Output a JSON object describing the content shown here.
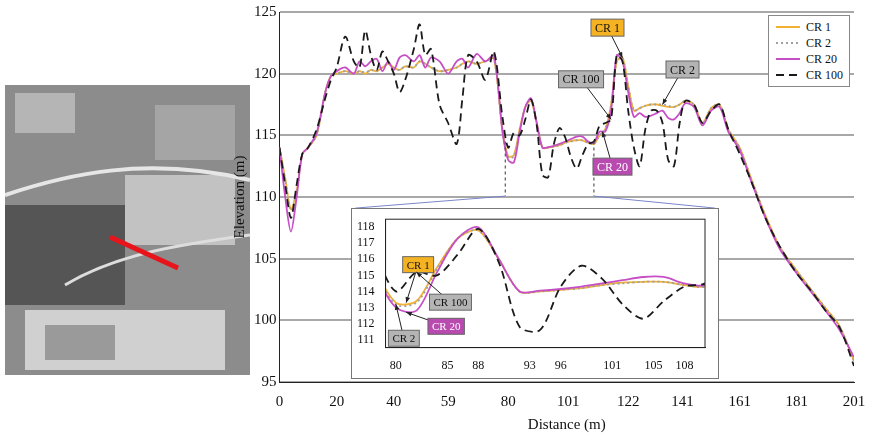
{
  "chart_data": {
    "type": "line",
    "x_label": "Distance (m)",
    "y_label": "Elevation (m)",
    "xlim": [
      0,
      201
    ],
    "xticks": [
      0,
      20,
      40,
      59,
      80,
      101,
      122,
      141,
      161,
      181,
      201
    ],
    "ylim": [
      95,
      125
    ],
    "yticks": [
      95,
      100,
      105,
      110,
      115,
      120,
      125
    ],
    "grid": true,
    "legend": "upper right",
    "x": [
      0,
      2,
      4,
      6,
      8,
      10,
      13,
      16,
      18,
      20,
      23,
      26,
      28,
      30,
      32,
      34,
      36,
      38,
      40,
      42,
      44,
      47,
      49,
      51,
      53,
      56,
      59,
      62,
      64,
      66,
      69,
      72,
      75,
      78,
      80,
      82,
      84,
      86,
      88,
      90,
      92,
      94,
      96,
      98,
      100,
      102,
      104,
      106,
      108,
      110,
      112,
      114,
      116,
      118,
      120,
      122,
      124,
      126,
      128,
      130,
      132,
      134,
      136,
      138,
      140,
      142,
      145,
      148,
      151,
      154,
      157,
      161,
      165,
      170,
      175,
      181,
      186,
      191,
      196,
      201
    ],
    "series": [
      {
        "name": "CR 1",
        "color": "#f2b134",
        "line_style": "solid",
        "values": [
          114,
          111.5,
          109,
          110.5,
          113.5,
          114,
          115,
          118.5,
          119.8,
          120,
          120.2,
          120,
          120.2,
          120,
          120.3,
          120.2,
          120.5,
          120.8,
          120.5,
          120.3,
          120.6,
          120.5,
          121,
          120.8,
          120.5,
          120.2,
          120.3,
          120.5,
          120.8,
          121,
          120.8,
          121,
          121.2,
          115.5,
          113.3,
          113.4,
          115.5,
          117.3,
          117.8,
          116.0,
          114.0,
          114.0,
          114.1,
          114.2,
          114.4,
          114.55,
          114.6,
          114.6,
          114.4,
          114.3,
          115.0,
          115.5,
          117.5,
          121.0,
          121.3,
          119.0,
          117.0,
          117.2,
          117.4,
          117.5,
          117.5,
          117.4,
          117.3,
          117.3,
          117.5,
          117.8,
          117.5,
          116.0,
          117.2,
          117.5,
          115.5,
          114.0,
          111.5,
          108.5,
          106.0,
          104.0,
          102.5,
          101.0,
          99.5,
          96.7
        ]
      },
      {
        "name": "CR 2",
        "color": "#a0a0a0",
        "line_style": "dotted",
        "values": [
          114,
          111.4,
          108.9,
          110.5,
          113.5,
          114,
          115,
          118.4,
          119.8,
          120,
          120.2,
          120,
          120.2,
          120.1,
          120.3,
          120.2,
          120.5,
          120.8,
          120.5,
          120.3,
          120.6,
          120.5,
          121,
          120.8,
          120.5,
          120.2,
          120.3,
          120.5,
          120.8,
          121,
          120.8,
          121,
          121.2,
          115.4,
          113.2,
          113.3,
          115.4,
          117.3,
          117.8,
          116.0,
          114.0,
          114.0,
          114.1,
          114.2,
          114.4,
          114.5,
          114.6,
          114.6,
          114.4,
          114.3,
          115.0,
          115.5,
          117.4,
          121.0,
          121.3,
          119.0,
          117.0,
          117.2,
          117.4,
          117.5,
          117.5,
          117.5,
          117.4,
          117.3,
          117.5,
          117.8,
          117.5,
          116.0,
          117.2,
          117.5,
          115.5,
          114.0,
          111.5,
          108.5,
          106.0,
          104.0,
          102.5,
          101.0,
          99.5,
          96.7
        ]
      },
      {
        "name": "CR 20",
        "color": "#c64fc6",
        "line_style": "solid",
        "values": [
          114,
          110,
          107.2,
          110,
          113.5,
          114,
          115.2,
          118.5,
          119.8,
          120.2,
          120.5,
          120,
          121,
          120.6,
          121,
          121.2,
          120.2,
          121,
          120.3,
          121.3,
          121.5,
          121,
          121.5,
          120.5,
          121.3,
          121,
          120,
          121,
          121.2,
          120.5,
          121.6,
          121,
          121.5,
          115.3,
          113.0,
          112.8,
          115.2,
          117.3,
          118.0,
          116.0,
          114.0,
          114.05,
          114.15,
          114.3,
          114.5,
          114.7,
          114.9,
          114.9,
          114.5,
          114.4,
          115.3,
          115.3,
          117.0,
          121.5,
          121.0,
          118.5,
          116.5,
          116.8,
          116.5,
          116.6,
          116.8,
          117.0,
          116.4,
          116.3,
          116.8,
          117.6,
          117.3,
          115.8,
          117.0,
          117.3,
          115.3,
          113.8,
          111.3,
          108.3,
          105.8,
          103.8,
          102.3,
          100.8,
          99.2,
          97.0
        ]
      },
      {
        "name": "CR 100",
        "color": "#1a1a1a",
        "line_style": "dashed",
        "values": [
          114,
          111,
          108.3,
          111,
          113.5,
          114,
          115.5,
          118,
          119.5,
          120.5,
          123,
          121,
          120.5,
          123.5,
          121.5,
          120.3,
          121.8,
          121,
          120,
          118.5,
          119.5,
          122,
          124,
          121.5,
          122,
          117.5,
          116,
          114.3,
          118,
          121.5,
          121,
          119.5,
          121.8,
          116.5,
          114.0,
          115.2,
          115.0,
          116.3,
          117.9,
          115.8,
          111.8,
          111.6,
          114.3,
          115.6,
          114.8,
          113.2,
          112.3,
          113.4,
          114.3,
          114.5,
          115.8,
          116.0,
          116.3,
          121.5,
          121.0,
          117.0,
          114.0,
          112.5,
          115.5,
          117.0,
          117.0,
          116.0,
          113.0,
          112.5,
          116.0,
          117.8,
          117.5,
          116.0,
          117.0,
          117.5,
          115.5,
          113.5,
          111.3,
          108.3,
          106.0,
          103.8,
          102.4,
          100.8,
          99.4,
          96.3
        ]
      }
    ],
    "annotations": [
      {
        "text": "CR 1",
        "x": 120,
        "y": 121.3,
        "color": "#f5b324"
      },
      {
        "text": "CR 100",
        "x": 116,
        "y": 116.3,
        "color": "#b4b4b4"
      },
      {
        "text": "CR 20",
        "x": 113,
        "y": 115.3,
        "color": "#b84ab0"
      },
      {
        "text": "CR 2",
        "x": 134,
        "y": 117.5,
        "color": "#b4b4b4"
      }
    ],
    "inset": {
      "xlim": [
        79,
        110
      ],
      "xticks": [
        80,
        85,
        88,
        93,
        96,
        101,
        105,
        108
      ],
      "ylim": [
        110.5,
        118.5
      ],
      "yticks": [
        111,
        112,
        113,
        114,
        115,
        116,
        117,
        118
      ],
      "annotations": [
        {
          "text": "CR 1",
          "x": 81,
          "y": 113.3,
          "color": "#f5b324"
        },
        {
          "text": "CR 100",
          "x": 82,
          "y": 115.2,
          "color": "#b4b4b4"
        },
        {
          "text": "CR 20",
          "x": 81,
          "y": 112.7,
          "color": "#b84ab0"
        },
        {
          "text": "CR 2",
          "x": 80,
          "y": 113.2,
          "color": "#b4b4b4"
        }
      ]
    }
  }
}
